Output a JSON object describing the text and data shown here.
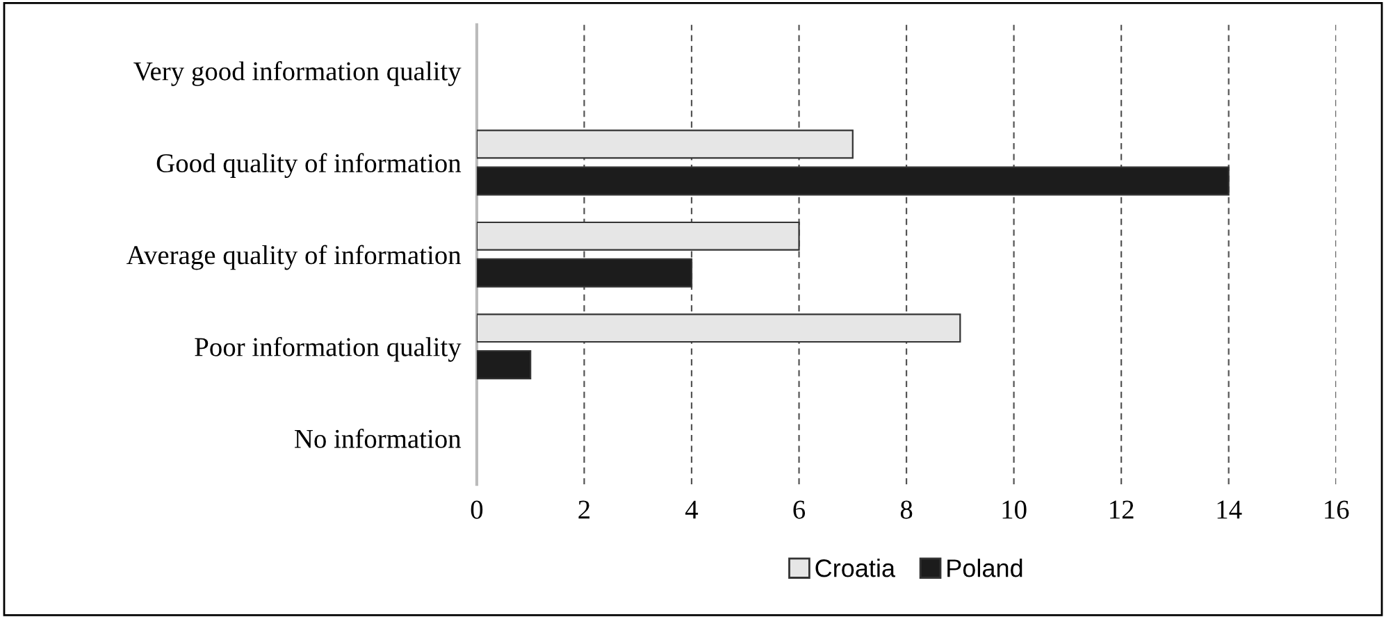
{
  "chart_data": {
    "type": "bar",
    "orientation": "horizontal",
    "categories": [
      "Very good information quality",
      "Good quality of information",
      "Average quality of information",
      "Poor information quality",
      "No information"
    ],
    "series": [
      {
        "name": "Croatia",
        "color": "#e6e6e6",
        "values": [
          0,
          7,
          6,
          9,
          0
        ]
      },
      {
        "name": "Poland",
        "color": "#1c1c1c",
        "values": [
          0,
          14,
          4,
          1,
          0
        ]
      }
    ],
    "xlim": [
      0,
      16
    ],
    "xticks": [
      0,
      2,
      4,
      6,
      8,
      10,
      12,
      14,
      16
    ],
    "grid": "x",
    "legend": "bottom"
  }
}
